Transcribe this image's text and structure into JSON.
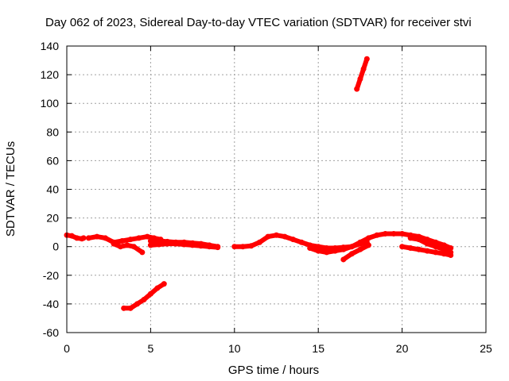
{
  "chart_data": {
    "type": "line",
    "title": "Day 062 of 2023, Sidereal Day-to-day VTEC variation (SDTVAR) for receiver stvi",
    "xlabel": "GPS time / hours",
    "ylabel": "SDTVAR / TECUs",
    "xlim": [
      0,
      25
    ],
    "ylim": [
      -60,
      140
    ],
    "xticks": [
      0,
      5,
      10,
      15,
      20,
      25
    ],
    "yticks": [
      -60,
      -40,
      -20,
      0,
      20,
      40,
      60,
      80,
      100,
      120,
      140
    ],
    "grid": true,
    "legend": "none",
    "color": "#ff0000",
    "series": [
      {
        "x": [
          0,
          0.3,
          0.6,
          0.9,
          1.0
        ],
        "y": [
          8,
          7.5,
          6,
          5.5,
          6
        ]
      },
      {
        "x": [
          1.3,
          1.8,
          2.3,
          2.8,
          3.3,
          3.8,
          4.3,
          4.8,
          5.2,
          5.6
        ],
        "y": [
          6,
          7,
          6,
          3,
          4,
          5,
          6,
          7,
          6,
          5
        ]
      },
      {
        "x": [
          2.8,
          3.2,
          3.6,
          4.0,
          4.5
        ],
        "y": [
          2,
          0,
          1,
          0,
          -4
        ]
      },
      {
        "x": [
          5.0,
          5.5,
          6.0,
          6.5,
          7.0,
          7.5,
          8.0,
          8.5,
          9.0
        ],
        "y": [
          4,
          4,
          3.5,
          3,
          3,
          2.5,
          2,
          1,
          0
        ]
      },
      {
        "x": [
          5.0,
          5.5,
          6.0,
          6.5,
          7.0,
          7.5,
          8.0,
          8.5,
          9.0
        ],
        "y": [
          1,
          1.5,
          2,
          2,
          1.5,
          1,
          0.5,
          0,
          -0.5
        ]
      },
      {
        "x": [
          3.4,
          3.8,
          4.2,
          4.6,
          5.0,
          5.4,
          5.8
        ],
        "y": [
          -43,
          -43,
          -40,
          -37,
          -33,
          -29,
          -26
        ]
      },
      {
        "x": [
          10.0,
          10.5,
          11.0,
          11.5,
          12.0,
          12.5,
          13.0,
          13.5,
          14.0,
          14.5,
          15.0,
          15.5,
          16.0,
          16.5,
          17.0,
          17.5,
          18.0,
          18.5,
          19.0,
          19.5,
          20.0,
          20.5,
          21.0,
          21.5,
          22.0,
          22.5,
          22.9
        ],
        "y": [
          0,
          0,
          0.5,
          3,
          7,
          8,
          7,
          5,
          3,
          1,
          0,
          -1,
          -1,
          -0.5,
          0,
          3,
          6,
          8,
          9,
          9,
          9,
          8,
          7,
          5,
          3,
          1,
          -1
        ]
      },
      {
        "x": [
          14.5,
          15.0,
          15.5,
          16.0,
          16.5,
          17.0,
          17.5,
          17.9
        ],
        "y": [
          -1,
          -3,
          -4,
          -3,
          -2,
          0,
          2,
          3
        ]
      },
      {
        "x": [
          16.5,
          17.0,
          17.5,
          18.0
        ],
        "y": [
          -9,
          -5,
          -2,
          1
        ]
      },
      {
        "x": [
          20.0,
          20.5,
          21.0,
          21.5,
          22.0,
          22.5,
          22.9
        ],
        "y": [
          0,
          -1,
          -2,
          -3,
          -4,
          -5,
          -6
        ]
      },
      {
        "x": [
          20.5,
          21.0,
          21.5,
          22.0,
          22.5,
          22.9
        ],
        "y": [
          6,
          5,
          2,
          0,
          -2,
          -4
        ]
      },
      {
        "x": [
          17.3,
          17.5,
          17.7,
          17.9
        ],
        "y": [
          110,
          117,
          124,
          131
        ]
      }
    ]
  }
}
